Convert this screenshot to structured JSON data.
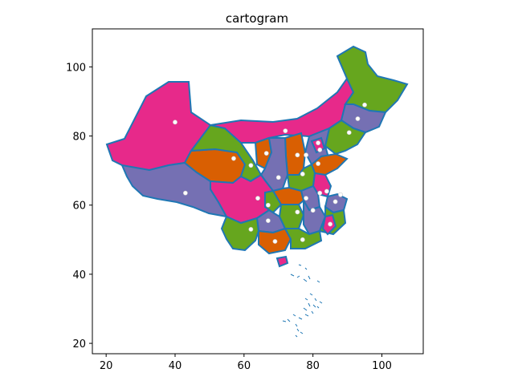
{
  "figure": {
    "title": "cartogram",
    "x_ticks": [
      "20",
      "40",
      "60",
      "80",
      "100"
    ],
    "y_ticks": [
      "20",
      "40",
      "60",
      "80",
      "100"
    ],
    "xlim": [
      16,
      112
    ],
    "ylim": [
      17,
      111
    ]
  },
  "colors": {
    "magenta": "#e7298a",
    "purple": "#7570b3",
    "orange": "#d95f02",
    "green": "#66a61e",
    "border": "#1f77b4",
    "dot": "#ffffff"
  },
  "centroids": [
    [
      40,
      84
    ],
    [
      95,
      89
    ],
    [
      93,
      85
    ],
    [
      90.5,
      81
    ],
    [
      72,
      81.5
    ],
    [
      66.5,
      75
    ],
    [
      57,
      73.5
    ],
    [
      62,
      71.5
    ],
    [
      81.5,
      78
    ],
    [
      82,
      76
    ],
    [
      78,
      74.5
    ],
    [
      75.5,
      74.5
    ],
    [
      81.5,
      72
    ],
    [
      70,
      68
    ],
    [
      77,
      69
    ],
    [
      43,
      63.5
    ],
    [
      64,
      62
    ],
    [
      78,
      62
    ],
    [
      84,
      64
    ],
    [
      82,
      63.5
    ],
    [
      88,
      63
    ],
    [
      86.5,
      61
    ],
    [
      67,
      60
    ],
    [
      80,
      58.5
    ],
    [
      75.5,
      58
    ],
    [
      62,
      53
    ],
    [
      67,
      55.5
    ],
    [
      77,
      50
    ],
    [
      69,
      49.5
    ],
    [
      85,
      54.5
    ]
  ]
}
